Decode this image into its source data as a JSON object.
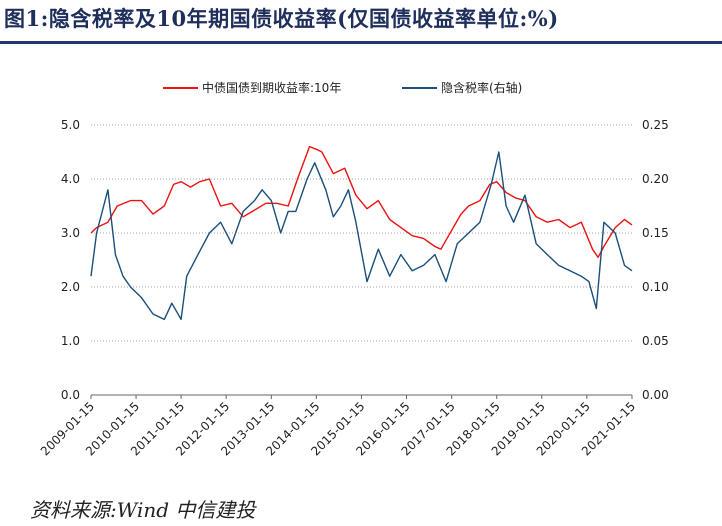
{
  "header": {
    "title": "图1:隐含税率及10年期国债收益率(仅国债收益率单位:%)"
  },
  "footer": {
    "source": "资料来源:Wind 中信建投"
  },
  "chart_data": {
    "type": "line",
    "title": "",
    "legend_position": "top",
    "grid": "horizontal dotted",
    "x_tick_labels": [
      "2009-01-15",
      "2010-01-15",
      "2011-01-15",
      "2012-01-15",
      "2013-01-15",
      "2014-01-15",
      "2015-01-15",
      "2016-01-15",
      "2017-01-15",
      "2018-01-15",
      "2019-01-15",
      "2020-01-15",
      "2021-01-15"
    ],
    "x_range": [
      "2009-01-15",
      "2021-01-15"
    ],
    "y_left": {
      "range": [
        0,
        5
      ],
      "ticks": [
        "0.0",
        "1.0",
        "2.0",
        "3.0",
        "4.0",
        "5.0"
      ]
    },
    "y_right": {
      "range": [
        0,
        0.25
      ],
      "ticks": [
        "0.00",
        "0.05",
        "0.10",
        "0.15",
        "0.20",
        "0.25"
      ]
    },
    "series": [
      {
        "name": "中债国债到期收益率:10年",
        "axis": "left",
        "color": "#ee1111",
        "x": [
          "2009-01-15",
          "2009-03-01",
          "2009-06-01",
          "2009-08-15",
          "2009-12-01",
          "2010-03-01",
          "2010-06-01",
          "2010-09-01",
          "2010-11-15",
          "2011-01-15",
          "2011-04-01",
          "2011-06-15",
          "2011-09-01",
          "2011-12-01",
          "2012-03-01",
          "2012-06-01",
          "2012-08-15",
          "2012-12-01",
          "2013-03-01",
          "2013-06-01",
          "2013-08-15",
          "2013-11-20",
          "2014-01-15",
          "2014-03-01",
          "2014-06-01",
          "2014-09-01",
          "2014-12-01",
          "2015-03-01",
          "2015-06-01",
          "2015-09-01",
          "2015-12-01",
          "2016-03-01",
          "2016-06-01",
          "2016-09-01",
          "2016-10-20",
          "2017-01-15",
          "2017-04-01",
          "2017-06-01",
          "2017-09-01",
          "2017-11-20",
          "2018-01-15",
          "2018-04-01",
          "2018-06-15",
          "2018-09-01",
          "2018-12-01",
          "2019-03-01",
          "2019-06-01",
          "2019-09-01",
          "2019-12-01",
          "2020-03-01",
          "2020-04-15",
          "2020-06-01",
          "2020-09-01",
          "2020-11-15",
          "2021-01-15"
        ],
        "y": [
          3.0,
          3.1,
          3.2,
          3.5,
          3.6,
          3.6,
          3.35,
          3.5,
          3.9,
          3.95,
          3.85,
          3.95,
          4.0,
          3.5,
          3.55,
          3.3,
          3.4,
          3.55,
          3.55,
          3.5,
          4.0,
          4.6,
          4.55,
          4.5,
          4.1,
          4.2,
          3.7,
          3.45,
          3.6,
          3.25,
          3.1,
          2.95,
          2.9,
          2.75,
          2.7,
          3.05,
          3.35,
          3.5,
          3.6,
          3.9,
          3.95,
          3.75,
          3.65,
          3.6,
          3.3,
          3.2,
          3.25,
          3.1,
          3.2,
          2.7,
          2.55,
          2.75,
          3.1,
          3.25,
          3.15
        ]
      },
      {
        "name": "隐含税率(右轴)",
        "axis": "right",
        "color": "#1b4f7a",
        "x": [
          "2009-01-15",
          "2009-03-01",
          "2009-06-01",
          "2009-08-01",
          "2009-10-01",
          "2009-12-01",
          "2010-03-01",
          "2010-06-01",
          "2010-09-01",
          "2010-11-01",
          "2011-01-15",
          "2011-03-01",
          "2011-06-01",
          "2011-09-01",
          "2011-12-01",
          "2012-03-01",
          "2012-06-01",
          "2012-09-01",
          "2012-11-01",
          "2013-01-15",
          "2013-04-01",
          "2013-06-01",
          "2013-08-01",
          "2013-11-01",
          "2014-01-01",
          "2014-04-01",
          "2014-06-01",
          "2014-08-01",
          "2014-10-01",
          "2014-12-01",
          "2015-03-01",
          "2015-06-01",
          "2015-09-01",
          "2015-12-01",
          "2016-03-01",
          "2016-06-01",
          "2016-09-01",
          "2016-12-01",
          "2017-03-01",
          "2017-06-01",
          "2017-09-01",
          "2017-12-01",
          "2018-02-01",
          "2018-04-01",
          "2018-06-01",
          "2018-09-01",
          "2018-12-01",
          "2019-03-01",
          "2019-06-01",
          "2019-09-01",
          "2019-12-01",
          "2020-02-01",
          "2020-04-01",
          "2020-06-01",
          "2020-09-01",
          "2020-11-15",
          "2021-01-15"
        ],
        "y": [
          0.11,
          0.15,
          0.19,
          0.13,
          0.11,
          0.1,
          0.09,
          0.075,
          0.07,
          0.085,
          0.07,
          0.11,
          0.13,
          0.15,
          0.16,
          0.14,
          0.17,
          0.18,
          0.19,
          0.18,
          0.15,
          0.17,
          0.17,
          0.2,
          0.215,
          0.19,
          0.165,
          0.175,
          0.19,
          0.16,
          0.105,
          0.135,
          0.11,
          0.13,
          0.115,
          0.12,
          0.13,
          0.105,
          0.14,
          0.15,
          0.16,
          0.195,
          0.225,
          0.175,
          0.16,
          0.185,
          0.14,
          0.13,
          0.12,
          0.115,
          0.11,
          0.105,
          0.08,
          0.16,
          0.15,
          0.12,
          0.115
        ]
      }
    ]
  }
}
